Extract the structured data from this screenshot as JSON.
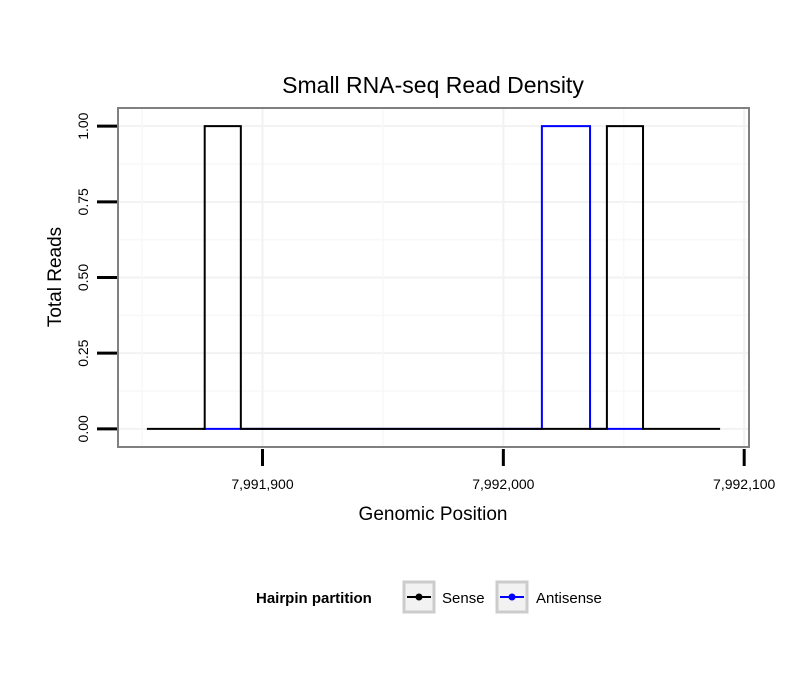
{
  "chart_data": {
    "type": "line",
    "title": "Small RNA-seq Read Density",
    "xlabel": "Genomic Position",
    "ylabel": "Total Reads",
    "xlim": [
      7991840,
      7992102
    ],
    "ylim": [
      -0.06,
      1.06
    ],
    "x_ticks": [
      7991900,
      7992000,
      7992100
    ],
    "x_tick_labels": [
      "7,991,900",
      "7,992,000",
      "7,992,100"
    ],
    "y_ticks": [
      0,
      0.25,
      0.5,
      0.75,
      1
    ],
    "y_tick_labels": [
      "0.00",
      "0.25",
      "0.50",
      "0.75",
      "1.00"
    ],
    "grid": true,
    "legend": {
      "title": "Hairpin partition",
      "position": "bottom"
    },
    "series": [
      {
        "name": "Sense",
        "color": "#000000",
        "x": [
          7991852,
          7991876,
          7991876,
          7991891,
          7991891,
          7992043,
          7992043,
          7992058,
          7992058,
          7992090
        ],
        "y": [
          0,
          0,
          1,
          1,
          0,
          0,
          1,
          1,
          0,
          0
        ]
      },
      {
        "name": "Antisense",
        "color": "#0000ff",
        "x": [
          7991875,
          7991891,
          7992016,
          7992016,
          7992036,
          7992036,
          7992043,
          7992058
        ],
        "y": [
          0,
          0,
          0,
          1,
          1,
          0,
          0,
          0
        ]
      }
    ]
  }
}
